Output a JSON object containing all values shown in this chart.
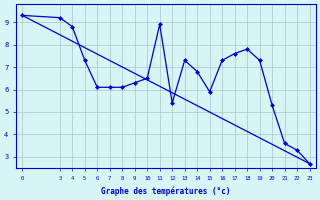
{
  "x_values": [
    0,
    3,
    4,
    5,
    6,
    7,
    8,
    9,
    10,
    11,
    12,
    13,
    14,
    15,
    16,
    17,
    18,
    19,
    20,
    21,
    22,
    23
  ],
  "y_values": [
    9.3,
    9.2,
    8.8,
    7.3,
    6.1,
    6.1,
    6.1,
    6.3,
    6.5,
    8.9,
    5.4,
    7.3,
    6.8,
    5.9,
    7.3,
    7.6,
    7.8,
    7.3,
    5.3,
    3.6,
    3.3,
    2.7
  ],
  "trend_x": [
    0,
    23
  ],
  "trend_y": [
    9.3,
    2.7
  ],
  "x_ticks": [
    0,
    3,
    4,
    5,
    6,
    7,
    8,
    9,
    10,
    11,
    12,
    13,
    14,
    15,
    16,
    17,
    18,
    19,
    20,
    21,
    22,
    23
  ],
  "y_ticks": [
    3,
    4,
    5,
    6,
    7,
    8,
    9
  ],
  "ylim": [
    2.5,
    9.8
  ],
  "xlim": [
    -0.5,
    23.5
  ],
  "xlabel": "Graphe des températures (°c)",
  "line_color": "#0000cd",
  "trend_color": "#0000cd",
  "bg_color": "#d8f5f5",
  "grid_color": "#a0c8c8",
  "axis_color": "#0000cd",
  "tick_label_color": "#0000cd",
  "xlabel_color": "#0000cd"
}
